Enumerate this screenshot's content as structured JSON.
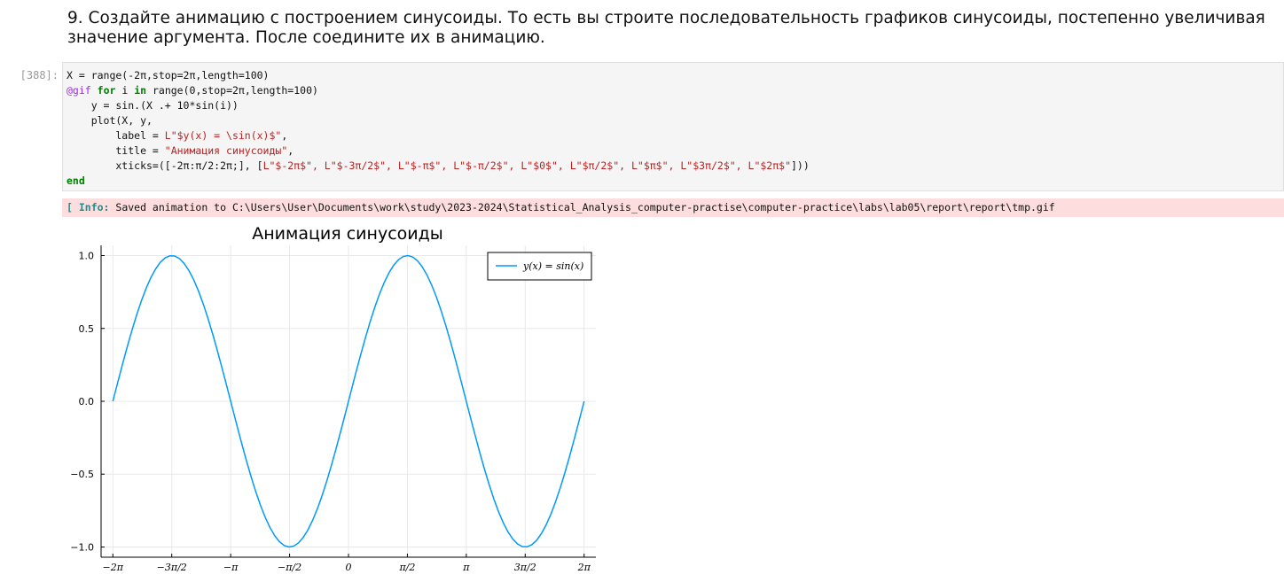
{
  "markdown": {
    "text": "9. Создайте анимацию с построением синусоиды. То есть вы строите последовательность графиков синусоиды, постепенно увеличивая значение аргумента. После соедините их в анимацию."
  },
  "cell": {
    "prompt": "[388]:",
    "code_lines": {
      "l1": "X = range(-2π,stop=2π,length=100)",
      "l2_macro": "@gif",
      "l2_for": "for",
      "l2_mid": " i ",
      "l2_in": "in",
      "l2_rest": " range(0,stop=2π,length=100)",
      "l3": "    y = sin.(X .+ 10*sin(i))",
      "l4": "    plot(X, y,",
      "l5_pre": "        label = ",
      "l5_str": "L\"$y(x) = \\sin(x)$\"",
      "l5_post": ",",
      "l6_pre": "        title = ",
      "l6_str": "\"Анимация синусоиды\"",
      "l6_post": ",",
      "l7_pre": "        xticks=([-2π:π/2:2π;], [",
      "l7_str": "L\"$-2π$\", L\"$-3π/2$\", L\"$-π$\", L\"$-π/2$\", L\"$0$\", L\"$π/2$\", L\"$π$\", L\"$3π/2$\", L\"$2π$\"",
      "l7_post": "]))",
      "l8": "end"
    }
  },
  "output": {
    "info_tag": "[ Info:",
    "info_text": " Saved animation to C:\\Users\\User\\Documents\\work\\study\\2023-2024\\Statistical_Analysis_computer-practise\\computer-practice\\labs\\lab05\\report\\report\\tmp.gif"
  },
  "chart_data": {
    "type": "line",
    "title": "Анимация синусоиды",
    "legend_label": "y(x) = sin(x)",
    "legend_position": "top-right",
    "line_color": "#009af9",
    "grid": true,
    "xlim": [
      -6.5973,
      6.5973
    ],
    "ylim": [
      -1.07,
      1.07
    ],
    "x_ticks": [
      {
        "value": -6.2832,
        "label": "−2π"
      },
      {
        "value": -4.7124,
        "label": "−3π/2"
      },
      {
        "value": -3.1416,
        "label": "−π"
      },
      {
        "value": -1.5708,
        "label": "−π/2"
      },
      {
        "value": 0,
        "label": "0"
      },
      {
        "value": 1.5708,
        "label": "π/2"
      },
      {
        "value": 3.1416,
        "label": "π"
      },
      {
        "value": 4.7124,
        "label": "3π/2"
      },
      {
        "value": 6.2832,
        "label": "2π"
      }
    ],
    "y_ticks": [
      {
        "value": 1.0,
        "label": "1.0"
      },
      {
        "value": 0.5,
        "label": "0.5"
      },
      {
        "value": 0.0,
        "label": "0.0"
      },
      {
        "value": -0.5,
        "label": "−0.5"
      },
      {
        "value": -1.0,
        "label": "−1.0"
      }
    ],
    "series": [
      {
        "function": "sin(x + 6.2832)",
        "x_start": -6.2832,
        "x_end": 6.2832,
        "n_points": 100
      }
    ]
  }
}
